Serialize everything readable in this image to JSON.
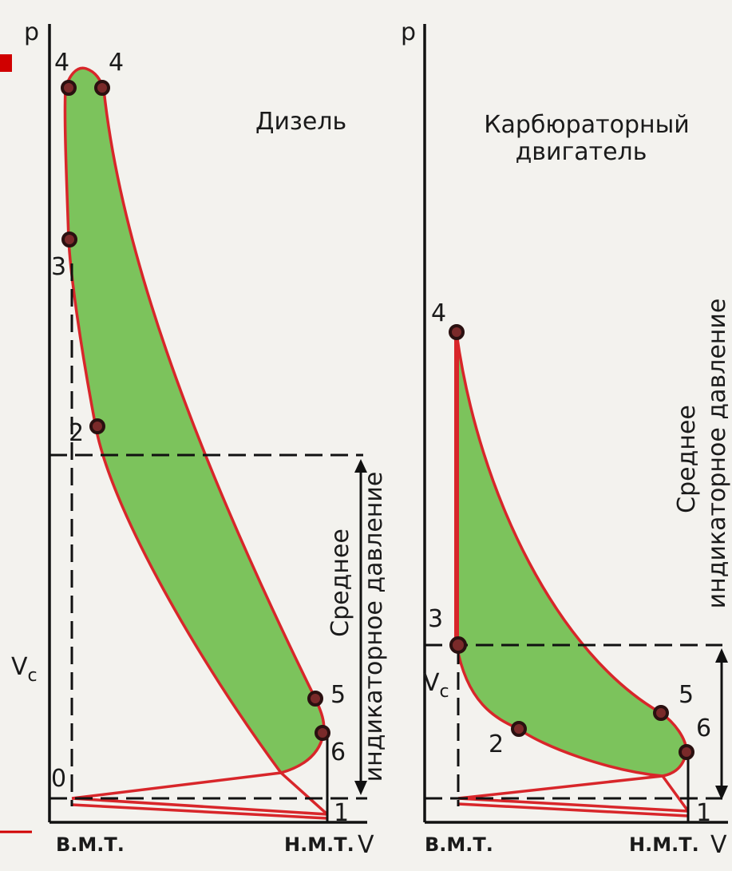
{
  "left": {
    "axis_p": "p",
    "axis_v": "V",
    "title": "Дизель",
    "points": {
      "4a": "4",
      "4b": "4",
      "3": "3",
      "2": "2",
      "5": "5",
      "6": "6",
      "0": "0",
      "1": "1"
    },
    "vc": {
      "main": "V",
      "sub": "c"
    },
    "mean_pressure": [
      "Среднее",
      "индикаторное давление"
    ],
    "tdc": "В.М.Т.",
    "bdc": "Н.М.Т."
  },
  "right": {
    "axis_p": "p",
    "axis_v": "V",
    "title": [
      "Карбюраторный",
      "двигатель"
    ],
    "points": {
      "4": "4",
      "3": "3",
      "2": "2",
      "5": "5",
      "6": "6",
      "1": "1"
    },
    "vc": {
      "main": "V",
      "sub": "c"
    },
    "mean_pressure": [
      "Среднее",
      "индикаторное давление"
    ],
    "tdc": "В.М.Т.",
    "bdc": "Н.М.Т."
  }
}
